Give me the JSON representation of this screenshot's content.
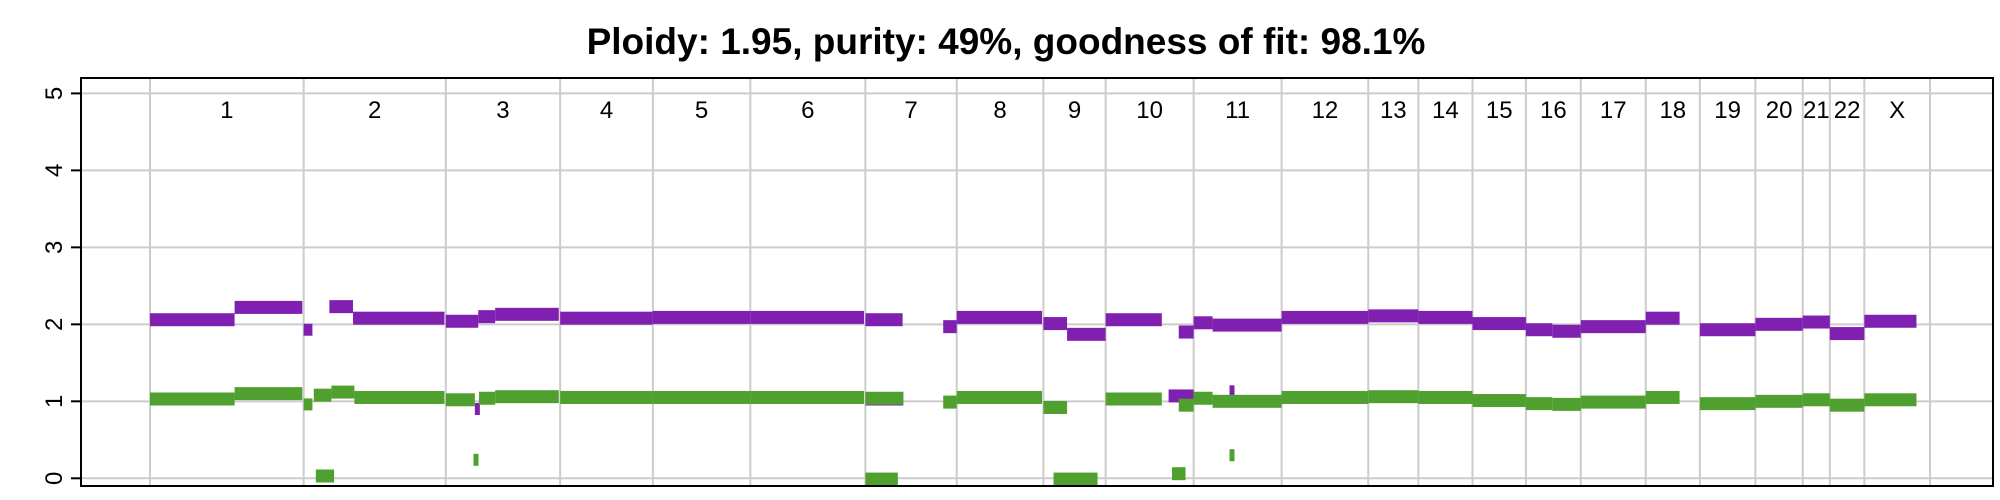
{
  "chart_data": {
    "type": "scatter",
    "title": "Ploidy: 1.95, purity: 49%, goodness of fit: 98.1%",
    "xlabel": "",
    "ylabel": "",
    "ylim": [
      -0.1,
      5.2
    ],
    "y_ticks": [
      "0",
      "1",
      "2",
      "3",
      "4",
      "5"
    ],
    "grid": true,
    "chromosomes": [
      "1",
      "2",
      "3",
      "4",
      "5",
      "6",
      "7",
      "8",
      "9",
      "10",
      "11",
      "12",
      "13",
      "14",
      "15",
      "16",
      "17",
      "18",
      "19",
      "20",
      "21",
      "22",
      "X"
    ],
    "chromosome_bounds": [
      0,
      2.27,
      4.37,
      6.06,
      7.43,
      8.87,
      10.57,
      11.92,
      13.2,
      14.12,
      15.42,
      16.72,
      18.0,
      18.74,
      19.54,
      20.33,
      21.14,
      22.1,
      22.9,
      23.72,
      24.42,
      24.82,
      25.33,
      26.3
    ],
    "colors": {
      "total_copy_number": "#8020B0",
      "minor_copy_number": "#50A030",
      "grid": "#cccccc"
    },
    "series": [
      {
        "color": "#8020B0",
        "segments": [
          {
            "x0": 0.0,
            "x1": 1.25,
            "y": 2.06
          },
          {
            "x0": 1.25,
            "x1": 2.25,
            "y": 2.22
          },
          {
            "x0": 2.27,
            "x1": 2.4,
            "y": 1.93
          },
          {
            "x0": 2.65,
            "x1": 3.0,
            "y": 2.23
          },
          {
            "x0": 3.0,
            "x1": 4.35,
            "y": 2.08
          },
          {
            "x0": 4.37,
            "x1": 4.85,
            "y": 2.04
          },
          {
            "x0": 4.85,
            "x1": 5.1,
            "y": 2.1
          },
          {
            "x0": 5.1,
            "x1": 6.04,
            "y": 2.13
          },
          {
            "x0": 6.06,
            "x1": 7.43,
            "y": 2.08
          },
          {
            "x0": 7.43,
            "x1": 8.87,
            "y": 2.09
          },
          {
            "x0": 8.87,
            "x1": 10.55,
            "y": 2.09
          },
          {
            "x0": 10.57,
            "x1": 11.12,
            "y": 2.06
          },
          {
            "x0": 11.72,
            "x1": 11.92,
            "y": 1.97
          },
          {
            "x0": 11.92,
            "x1": 13.18,
            "y": 2.09
          },
          {
            "x0": 13.2,
            "x1": 13.55,
            "y": 2.01
          },
          {
            "x0": 13.55,
            "x1": 14.12,
            "y": 1.87
          },
          {
            "x0": 14.12,
            "x1": 14.95,
            "y": 2.06
          },
          {
            "x0": 15.2,
            "x1": 15.42,
            "y": 1.9
          },
          {
            "x0": 15.42,
            "x1": 15.7,
            "y": 2.02
          },
          {
            "x0": 15.7,
            "x1": 16.72,
            "y": 1.99
          },
          {
            "x0": 16.72,
            "x1": 18.0,
            "y": 2.09
          },
          {
            "x0": 18.0,
            "x1": 18.74,
            "y": 2.11
          },
          {
            "x0": 18.74,
            "x1": 19.54,
            "y": 2.09
          },
          {
            "x0": 19.54,
            "x1": 20.33,
            "y": 2.01
          },
          {
            "x0": 20.33,
            "x1": 20.72,
            "y": 1.93
          },
          {
            "x0": 20.72,
            "x1": 21.14,
            "y": 1.91
          },
          {
            "x0": 21.14,
            "x1": 22.1,
            "y": 1.97
          },
          {
            "x0": 22.1,
            "x1": 22.6,
            "y": 2.08
          },
          {
            "x0": 22.9,
            "x1": 23.72,
            "y": 1.93
          },
          {
            "x0": 23.72,
            "x1": 24.42,
            "y": 2.0
          },
          {
            "x0": 24.42,
            "x1": 24.82,
            "y": 2.03
          },
          {
            "x0": 24.82,
            "x1": 25.33,
            "y": 1.88
          },
          {
            "x0": 25.33,
            "x1": 26.1,
            "y": 2.04
          },
          {
            "x0": 4.8,
            "x1": 4.86,
            "y": 0.9
          },
          {
            "x0": 15.05,
            "x1": 15.42,
            "y": 1.07
          },
          {
            "x0": 15.95,
            "x1": 16.02,
            "y": 1.13
          },
          {
            "x0": 10.57,
            "x1": 11.13,
            "y": 1.03
          }
        ]
      },
      {
        "color": "#50A030",
        "segments": [
          {
            "x0": 0.0,
            "x1": 1.25,
            "y": 1.03
          },
          {
            "x0": 1.25,
            "x1": 2.25,
            "y": 1.1
          },
          {
            "x0": 2.27,
            "x1": 2.4,
            "y": 0.96
          },
          {
            "x0": 2.42,
            "x1": 2.68,
            "y": 1.08
          },
          {
            "x0": 2.68,
            "x1": 3.02,
            "y": 1.12
          },
          {
            "x0": 3.02,
            "x1": 4.35,
            "y": 1.05
          },
          {
            "x0": 4.37,
            "x1": 4.8,
            "y": 1.02
          },
          {
            "x0": 4.86,
            "x1": 5.1,
            "y": 1.04
          },
          {
            "x0": 5.1,
            "x1": 6.04,
            "y": 1.06
          },
          {
            "x0": 6.06,
            "x1": 7.43,
            "y": 1.05
          },
          {
            "x0": 7.43,
            "x1": 8.87,
            "y": 1.05
          },
          {
            "x0": 8.87,
            "x1": 10.55,
            "y": 1.05
          },
          {
            "x0": 10.57,
            "x1": 11.13,
            "y": 1.04
          },
          {
            "x0": 11.72,
            "x1": 11.92,
            "y": 0.99
          },
          {
            "x0": 11.92,
            "x1": 13.18,
            "y": 1.05
          },
          {
            "x0": 13.2,
            "x1": 13.55,
            "y": 0.92
          },
          {
            "x0": 14.12,
            "x1": 14.95,
            "y": 1.03
          },
          {
            "x0": 15.2,
            "x1": 15.42,
            "y": 0.95
          },
          {
            "x0": 15.42,
            "x1": 15.7,
            "y": 1.04
          },
          {
            "x0": 15.7,
            "x1": 16.72,
            "y": 1.0
          },
          {
            "x0": 16.72,
            "x1": 18.0,
            "y": 1.05
          },
          {
            "x0": 18.0,
            "x1": 18.74,
            "y": 1.06
          },
          {
            "x0": 18.74,
            "x1": 19.54,
            "y": 1.05
          },
          {
            "x0": 19.54,
            "x1": 20.33,
            "y": 1.01
          },
          {
            "x0": 20.33,
            "x1": 20.72,
            "y": 0.97
          },
          {
            "x0": 20.72,
            "x1": 21.14,
            "y": 0.96
          },
          {
            "x0": 21.14,
            "x1": 22.1,
            "y": 0.99
          },
          {
            "x0": 22.1,
            "x1": 22.6,
            "y": 1.05
          },
          {
            "x0": 22.9,
            "x1": 23.72,
            "y": 0.97
          },
          {
            "x0": 23.72,
            "x1": 24.42,
            "y": 1.0
          },
          {
            "x0": 24.42,
            "x1": 24.82,
            "y": 1.02
          },
          {
            "x0": 24.82,
            "x1": 25.33,
            "y": 0.95
          },
          {
            "x0": 25.33,
            "x1": 26.1,
            "y": 1.02
          },
          {
            "x0": 2.45,
            "x1": 2.72,
            "y": 0.03
          },
          {
            "x0": 4.78,
            "x1": 4.83,
            "y": 0.24
          },
          {
            "x0": 10.57,
            "x1": 11.05,
            "y": -0.01
          },
          {
            "x0": 13.35,
            "x1": 14.0,
            "y": -0.01
          },
          {
            "x0": 15.1,
            "x1": 15.3,
            "y": 0.06
          },
          {
            "x0": 15.95,
            "x1": 16.02,
            "y": 0.3
          }
        ]
      }
    ]
  }
}
